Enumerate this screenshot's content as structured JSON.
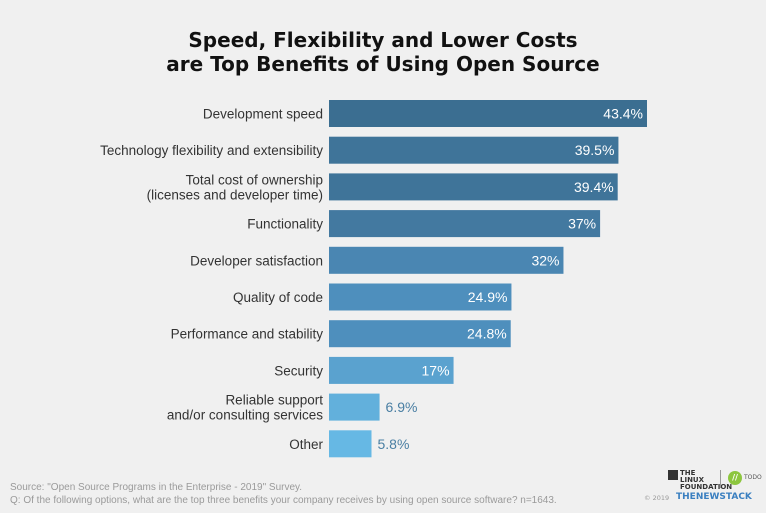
{
  "chart_data": {
    "type": "bar",
    "orientation": "horizontal",
    "title": [
      "Speed, Flexibility and Lower Costs",
      "are Top Benefits of Using Open Source"
    ],
    "categories": [
      [
        "Development speed"
      ],
      [
        "Technology flexibility and extensibility"
      ],
      [
        "Total cost of ownership",
        "(licenses and developer time)"
      ],
      [
        "Functionality"
      ],
      [
        "Developer satisfaction"
      ],
      [
        "Quality of code"
      ],
      [
        "Performance and stability"
      ],
      [
        "Security"
      ],
      [
        "Reliable support",
        "and/or consulting services"
      ],
      [
        "Other"
      ]
    ],
    "values": [
      43.4,
      39.5,
      39.4,
      37,
      32,
      24.9,
      24.8,
      17,
      6.9,
      5.8
    ],
    "value_labels": [
      "43.4%",
      "39.5%",
      "39.4%",
      "37%",
      "32%",
      "24.9%",
      "24.8%",
      "17%",
      "6.9%",
      "5.8%"
    ],
    "bar_colors": [
      "#3b6e91",
      "#3f7499",
      "#3f7499",
      "#4379a0",
      "#4a86b2",
      "#4e8fbd",
      "#4e8fbd",
      "#5aa2cf",
      "#62b0dc",
      "#66b8e4"
    ],
    "xlim": [
      0,
      43.4
    ],
    "xlabel": "",
    "ylabel": ""
  },
  "footer": {
    "source": "Source: \"Open Source Programs in the Enterprise - 2019\" Survey.",
    "question": "Q: Of the following options, what are the top three benefits your company receives by using open source software? n=1643."
  },
  "branding": {
    "lf_line1": "THE",
    "lf_line2": "LINUX",
    "lf_line3": "FOUNDATION",
    "todo_mark": "//",
    "todo_label": "TODO",
    "copyright": "© 2019",
    "publisher": "THENEWSTACK"
  }
}
